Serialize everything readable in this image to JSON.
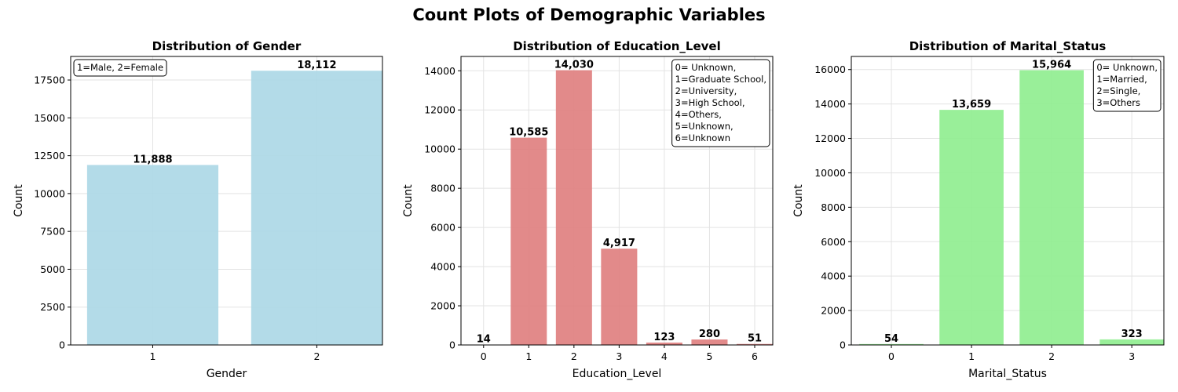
{
  "figure_title": "Count Plots of Demographic Variables",
  "chart_data": [
    {
      "type": "bar",
      "title": "Distribution of Gender",
      "xlabel": "Gender",
      "ylabel": "Count",
      "categories": [
        "1",
        "2"
      ],
      "values": [
        11888,
        18112
      ],
      "value_labels": [
        "11,888",
        "18,112"
      ],
      "ylim": [
        0,
        19056
      ],
      "yticks": [
        0,
        2500,
        5000,
        7500,
        10000,
        12500,
        15000,
        17500
      ],
      "color": "#add8e6",
      "grid": true,
      "annotation": [
        "1=Male, 2=Female"
      ],
      "annotation_placement": "top-left"
    },
    {
      "type": "bar",
      "title": "Distribution of Education_Level",
      "xlabel": "Education_Level",
      "ylabel": "Count",
      "categories": [
        "0",
        "1",
        "2",
        "3",
        "4",
        "5",
        "6"
      ],
      "values": [
        14,
        10585,
        14030,
        4917,
        123,
        280,
        51
      ],
      "value_labels": [
        "14",
        "10,585",
        "14,030",
        "4,917",
        "123",
        "280",
        "51"
      ],
      "ylim": [
        0,
        14732
      ],
      "yticks": [
        0,
        2000,
        4000,
        6000,
        8000,
        10000,
        12000,
        14000
      ],
      "color": "#e08080",
      "grid": true,
      "annotation": [
        "0= Unknown,",
        "1=Graduate School,",
        "2=University,",
        "3=High School,",
        "4=Others,",
        "5=Unknown,",
        "6=Unknown"
      ],
      "annotation_placement": "top-right"
    },
    {
      "type": "bar",
      "title": "Distribution of Marital_Status",
      "xlabel": "Marital_Status",
      "ylabel": "Count",
      "categories": [
        "0",
        "1",
        "2",
        "3"
      ],
      "values": [
        54,
        13659,
        15964,
        323
      ],
      "value_labels": [
        "54",
        "13,659",
        "15,964",
        "323"
      ],
      "ylim": [
        0,
        16762
      ],
      "yticks": [
        0,
        2000,
        4000,
        6000,
        8000,
        10000,
        12000,
        14000,
        16000
      ],
      "color": "#90ee90",
      "grid": true,
      "annotation": [
        "0= Unknown,",
        "1=Married,",
        "2=Single,",
        "3=Others"
      ],
      "annotation_placement": "top-right"
    }
  ]
}
